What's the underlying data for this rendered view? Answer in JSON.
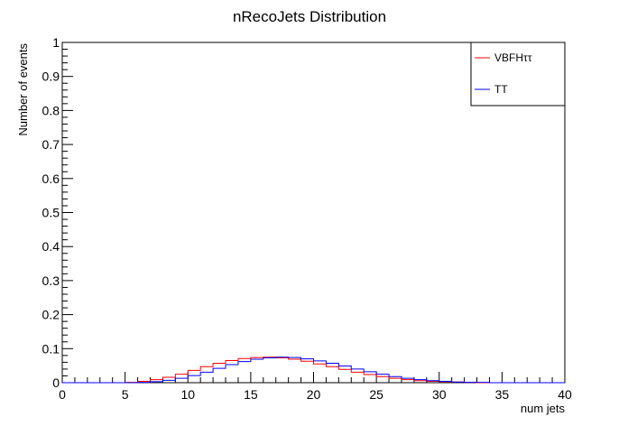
{
  "chart_data": {
    "type": "line",
    "title": "nRecoJets Distribution",
    "xlabel": "num jets",
    "ylabel": "Number of events",
    "xlim": [
      0,
      40
    ],
    "ylim": [
      0,
      1
    ],
    "x_ticks": [
      "0",
      "5",
      "10",
      "15",
      "20",
      "25",
      "30",
      "35",
      "40"
    ],
    "y_ticks": [
      "0",
      "0.1",
      "0.2",
      "0.3",
      "0.4",
      "0.5",
      "0.6",
      "0.7",
      "0.8",
      "0.9",
      "1"
    ],
    "legend_position": "top-right",
    "grid": false,
    "bin_edges_start": 0,
    "bin_width": 1,
    "series": [
      {
        "name": "VBFHττ",
        "color": "#ff0000",
        "values": [
          0,
          0,
          0,
          0,
          0,
          0.001,
          0.004,
          0.009,
          0.016,
          0.025,
          0.036,
          0.047,
          0.057,
          0.065,
          0.071,
          0.074,
          0.075,
          0.073,
          0.069,
          0.063,
          0.055,
          0.047,
          0.039,
          0.031,
          0.024,
          0.018,
          0.013,
          0.009,
          0.006,
          0.004,
          0.003,
          0.002,
          0.001,
          0,
          0,
          0,
          0,
          0,
          0,
          0
        ]
      },
      {
        "name": "TT",
        "color": "#0000ff",
        "values": [
          0,
          0,
          0,
          0,
          0,
          0,
          0.001,
          0.003,
          0.007,
          0.013,
          0.021,
          0.031,
          0.042,
          0.053,
          0.062,
          0.069,
          0.073,
          0.075,
          0.074,
          0.07,
          0.064,
          0.057,
          0.049,
          0.04,
          0.032,
          0.025,
          0.018,
          0.013,
          0.009,
          0.006,
          0.004,
          0.002,
          0.001,
          0.001,
          0,
          0,
          0,
          0,
          0,
          0
        ]
      }
    ]
  }
}
